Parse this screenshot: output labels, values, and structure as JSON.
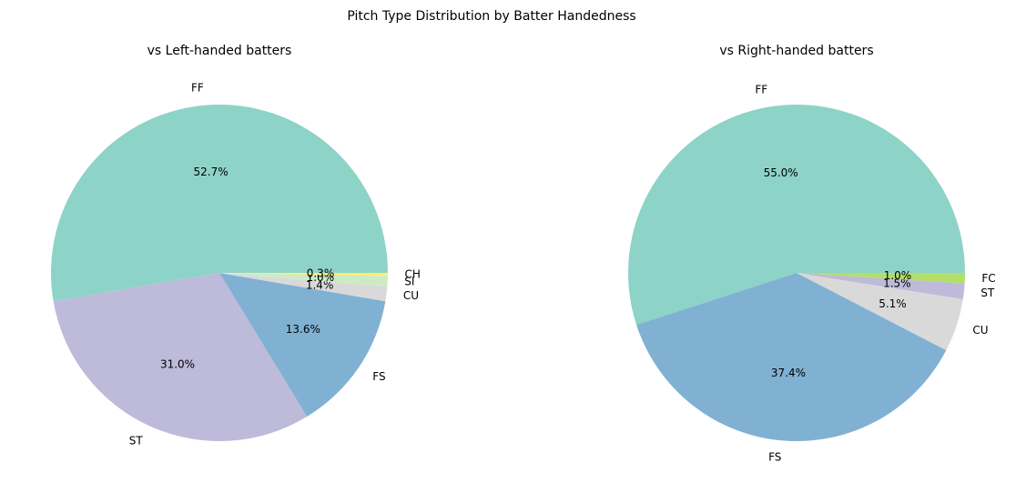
{
  "title": "Pitch Type Distribution by Batter Handedness",
  "chart_data": [
    {
      "type": "pie",
      "title": "vs Left-handed batters",
      "categories": [
        "FF",
        "ST",
        "FS",
        "CU",
        "SI",
        "CH"
      ],
      "values": [
        52.7,
        31.0,
        13.6,
        1.4,
        1.0,
        0.3
      ],
      "value_labels": [
        "52.7%",
        "31.0%",
        "13.6%",
        "1.4%",
        "1.0%",
        "0.3%"
      ],
      "colors": [
        "#8dd3c7",
        "#bebada",
        "#80b1d3",
        "#d9d9d9",
        "#ccebc5",
        "#ffed6f"
      ]
    },
    {
      "type": "pie",
      "title": "vs Right-handed batters",
      "categories": [
        "FF",
        "FS",
        "CU",
        "ST",
        "FC"
      ],
      "values": [
        55.0,
        37.4,
        5.1,
        1.5,
        1.0
      ],
      "value_labels": [
        "55.0%",
        "37.4%",
        "5.1%",
        "1.5%",
        "1.0%"
      ],
      "colors": [
        "#8dd3c7",
        "#80b1d3",
        "#d9d9d9",
        "#bebada",
        "#b3de69"
      ]
    }
  ]
}
